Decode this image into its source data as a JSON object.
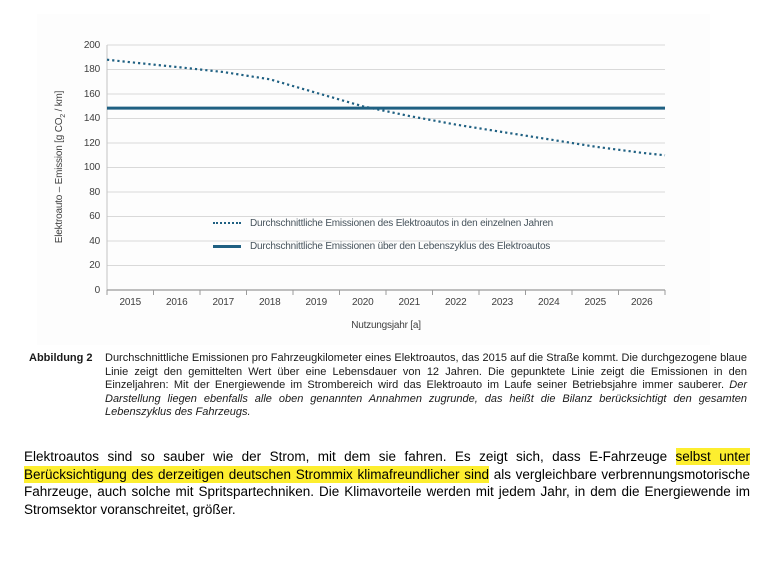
{
  "chart_data": {
    "type": "line",
    "x": [
      2015,
      2016,
      2017,
      2018,
      2019,
      2020,
      2021,
      2022,
      2023,
      2024,
      2025,
      2026
    ],
    "series": [
      {
        "name": "Durchschnittliche Emissionen des Elektroautos in den einzelnen Jahren",
        "style": "dotted",
        "values": [
          186,
          182,
          178,
          172,
          161,
          150,
          142,
          135,
          129,
          123,
          117,
          112
        ],
        "edge_start": 188,
        "edge_end": 110
      },
      {
        "name": "Durchschnittliche Emissionen über den Lebenszyklus des Elektroautos",
        "style": "solid",
        "constant_value": 148.5
      }
    ],
    "xlabel": "Nutzungsjahr [a]",
    "ylabel": "Elektroauto – Emission [g CO₂ / km]",
    "ylabel_parts": {
      "pre": "Elektroauto – Emission [g CO",
      "sub": "2",
      "post": " / km]"
    },
    "ylim": [
      0,
      200
    ],
    "yticks": [
      0,
      20,
      40,
      60,
      80,
      100,
      120,
      140,
      160,
      180,
      200
    ],
    "grid": "horizontal",
    "legend_position": "inside-lower-left"
  },
  "colors": {
    "line_blue": "#1f6082",
    "grid": "#d9d9d9",
    "axis": "#9a9a9a",
    "left_axis": "#c4c4c4",
    "highlight": "#fdee2f"
  },
  "caption": {
    "label": "Abbildung 2",
    "text_normal": "Durchschnittliche Emissionen pro Fahrzeugkilometer eines Elektroautos, das 2015 auf die Straße kommt. Die durchgezogene blaue Linie zeigt den gemittelten Wert über eine Lebensdauer von 12 Jahren. Die gepunktete Linie zeigt die Emissionen in den Einzeljahren: Mit der Energiewende im Strombereich wird das Elektroauto im Laufe seiner Betriebsjahre immer sauberer.  ",
    "text_italic": "Der Darstellung liegen ebenfalls alle oben genannten Annahmen zugrunde, das heißt die Bilanz berücksichtigt den gesamten Lebenszyklus des Fahrzeugs."
  },
  "body": {
    "pre": "Elektroautos sind so sauber wie der Strom, mit dem sie fahren. Es zeigt sich, dass E-Fahrzeuge ",
    "highlight": "selbst unter Berücksichtigung des derzeitigen deutschen Strommix klimafreundlicher sind",
    "post": " als vergleichbare verbrennungsmotorische Fahrzeuge, auch solche mit Spritspartechniken. Die Klimavorteile werden mit jedem Jahr, in dem die Energiewende im Stromsektor voranschreitet, größer."
  }
}
